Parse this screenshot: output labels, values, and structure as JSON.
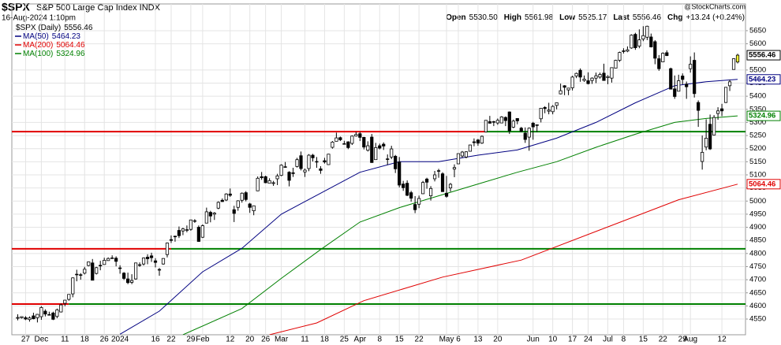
{
  "chart_data": {
    "type": "candlestick",
    "symbol": "$SPX",
    "title": "S&P 500 Large Cap Index INDX",
    "date": "16-Aug-2024 1:10pm",
    "source": "@StockCharts.com",
    "quote": [
      {
        "label": "Open",
        "value": "5530.50"
      },
      {
        "label": "High",
        "value": "5561.98"
      },
      {
        "label": "Low",
        "value": "5525.17"
      },
      {
        "label": "Last",
        "value": "5556.46"
      },
      {
        "label": "Chg",
        "value": "+13.24 (+0.24%)"
      }
    ],
    "price_name": "$SPX (Daily)",
    "ylim": [
      4490,
      5752
    ],
    "xlim": [
      -1.5,
      185
    ],
    "yticks": [
      4550,
      4600,
      4650,
      4700,
      4750,
      4800,
      4850,
      4900,
      4950,
      5000,
      5050,
      5100,
      5150,
      5200,
      5250,
      5300,
      5350,
      5400,
      5450,
      5500,
      5600,
      5650
    ],
    "grid": true,
    "up_fill": "#ffffff",
    "down_fill": "#000000",
    "last_fill": "#ffff33",
    "xlabels": [
      {
        "index": 2,
        "label": "27"
      },
      {
        "index": 6,
        "label": "Dec"
      },
      {
        "index": 12,
        "label": "11"
      },
      {
        "index": 17,
        "label": "18"
      },
      {
        "index": 22,
        "label": "26"
      },
      {
        "index": 26,
        "label": "2024"
      },
      {
        "index": 35,
        "label": "16"
      },
      {
        "index": 39,
        "label": "22"
      },
      {
        "index": 44,
        "label": "29"
      },
      {
        "index": 47,
        "label": "Feb"
      },
      {
        "index": 54,
        "label": "12"
      },
      {
        "index": 59,
        "label": "20"
      },
      {
        "index": 63,
        "label": "26"
      },
      {
        "index": 67,
        "label": "Mar"
      },
      {
        "index": 73,
        "label": "11"
      },
      {
        "index": 78,
        "label": "18"
      },
      {
        "index": 83,
        "label": "25"
      },
      {
        "index": 87,
        "label": "Apr"
      },
      {
        "index": 92,
        "label": "8"
      },
      {
        "index": 97,
        "label": "15"
      },
      {
        "index": 102,
        "label": "22"
      },
      {
        "index": 109,
        "label": "May"
      },
      {
        "index": 112,
        "label": "6"
      },
      {
        "index": 117,
        "label": "13"
      },
      {
        "index": 122,
        "label": "20"
      },
      {
        "index": 131,
        "label": "Jun"
      },
      {
        "index": 136,
        "label": "10"
      },
      {
        "index": 141,
        "label": "17"
      },
      {
        "index": 145,
        "label": "24"
      },
      {
        "index": 150,
        "label": "Jul"
      },
      {
        "index": 154,
        "label": "8"
      },
      {
        "index": 159,
        "label": "15"
      },
      {
        "index": 164,
        "label": "22"
      },
      {
        "index": 169,
        "label": "29"
      },
      {
        "index": 171,
        "label": "Aug"
      },
      {
        "index": 179,
        "label": "12"
      }
    ],
    "levels": [
      {
        "value": 5265,
        "segments": [
          {
            "color": "#e00000",
            "from": -2,
            "to": 119
          },
          {
            "color": "#008000",
            "from": 119,
            "to": 186
          }
        ]
      },
      {
        "value": 4818,
        "segments": [
          {
            "color": "#e00000",
            "from": -2,
            "to": 39
          },
          {
            "color": "#008000",
            "from": 39,
            "to": 186
          }
        ]
      },
      {
        "value": 4607,
        "segments": [
          {
            "color": "#e00000",
            "from": -2,
            "to": 13
          },
          {
            "color": "#008000",
            "from": 13,
            "to": 186
          }
        ]
      }
    ],
    "candles": [
      [
        4553,
        4568,
        4545,
        4556
      ],
      [
        4555,
        4560,
        4552,
        4559
      ],
      [
        4555,
        4561,
        4546,
        4550
      ],
      [
        4548,
        4560,
        4540,
        4554
      ],
      [
        4562,
        4574,
        4549,
        4551
      ],
      [
        4555,
        4569,
        4537,
        4568
      ],
      [
        4559,
        4599,
        4547,
        4594
      ],
      [
        4580,
        4587,
        4560,
        4569
      ],
      [
        4567,
        4578,
        4564,
        4567
      ],
      [
        4573,
        4578,
        4546,
        4549
      ],
      [
        4560,
        4590,
        4553,
        4585
      ],
      [
        4577,
        4609,
        4575,
        4604
      ],
      [
        4610,
        4623,
        4599,
        4622
      ],
      [
        4625,
        4644,
        4620,
        4644
      ],
      [
        4646,
        4709,
        4633,
        4707
      ],
      [
        4721,
        4738,
        4694,
        4720
      ],
      [
        4719,
        4725,
        4700,
        4719
      ],
      [
        4725,
        4749,
        4720,
        4740
      ],
      [
        4754,
        4769,
        4751,
        4768
      ],
      [
        4764,
        4779,
        4698,
        4698
      ],
      [
        4724,
        4749,
        4720,
        4746
      ],
      [
        4754,
        4772,
        4736,
        4755
      ],
      [
        4758,
        4784,
        4758,
        4774
      ],
      [
        4773,
        4785,
        4772,
        4781
      ],
      [
        4783,
        4793,
        4780,
        4783
      ],
      [
        4782,
        4789,
        4751,
        4770
      ],
      [
        4745,
        4755,
        4723,
        4743
      ],
      [
        4725,
        4729,
        4699,
        4705
      ],
      [
        4703,
        4727,
        4683,
        4689
      ],
      [
        4690,
        4721,
        4683,
        4697
      ],
      [
        4703,
        4765,
        4700,
        4764
      ],
      [
        4757,
        4766,
        4749,
        4757
      ],
      [
        4760,
        4785,
        4754,
        4783
      ],
      [
        4786,
        4797,
        4759,
        4780
      ],
      [
        4791,
        4803,
        4768,
        4784
      ],
      [
        4772,
        4782,
        4747,
        4766
      ],
      [
        4739,
        4745,
        4715,
        4739
      ],
      [
        4760,
        4782,
        4757,
        4781
      ],
      [
        4796,
        4842,
        4785,
        4840
      ],
      [
        4853,
        4869,
        4840,
        4850
      ],
      [
        4866,
        4868,
        4845,
        4865
      ],
      [
        4888,
        4903,
        4859,
        4868
      ],
      [
        4886,
        4898,
        4870,
        4894
      ],
      [
        4888,
        4907,
        4881,
        4891
      ],
      [
        4892,
        4929,
        4887,
        4928
      ],
      [
        4925,
        4931,
        4917,
        4925
      ],
      [
        4900,
        4907,
        4845,
        4846
      ],
      [
        4862,
        4911,
        4859,
        4906
      ],
      [
        4916,
        4975,
        4915,
        4959
      ],
      [
        4957,
        4963,
        4919,
        4943
      ],
      [
        4950,
        4958,
        4928,
        4954
      ],
      [
        4973,
        4999,
        4969,
        4995
      ],
      [
        5003,
        5010,
        4997,
        4998
      ],
      [
        5004,
        5030,
        5000,
        5027
      ],
      [
        5027,
        5048,
        5016,
        5022
      ],
      [
        4967,
        4982,
        4920,
        4953
      ],
      [
        4976,
        5003,
        4963,
        5001
      ],
      [
        5003,
        5033,
        4994,
        5030
      ],
      [
        5032,
        5038,
        4999,
        5006
      ],
      [
        4989,
        4993,
        4955,
        4976
      ],
      [
        4963,
        4983,
        4946,
        4982
      ],
      [
        5039,
        5094,
        5038,
        5087
      ],
      [
        5093,
        5111,
        5081,
        5089
      ],
      [
        5093,
        5097,
        5068,
        5070
      ],
      [
        5068,
        5087,
        5068,
        5078
      ],
      [
        5067,
        5077,
        5058,
        5070
      ],
      [
        5085,
        5104,
        5061,
        5096
      ],
      [
        5098,
        5140,
        5095,
        5137
      ],
      [
        5130,
        5149,
        5127,
        5131
      ],
      [
        5110,
        5114,
        5056,
        5079
      ],
      [
        5108,
        5127,
        5092,
        5105
      ],
      [
        5132,
        5165,
        5128,
        5158
      ],
      [
        5173,
        5189,
        5117,
        5124
      ],
      [
        5111,
        5124,
        5092,
        5118
      ],
      [
        5124,
        5179,
        5114,
        5175
      ],
      [
        5175,
        5180,
        5151,
        5165
      ],
      [
        5150,
        5168,
        5127,
        5151
      ],
      [
        5123,
        5133,
        5104,
        5117
      ],
      [
        5154,
        5165,
        5143,
        5149
      ],
      [
        5139,
        5180,
        5138,
        5179
      ],
      [
        5205,
        5229,
        5200,
        5225
      ],
      [
        5228,
        5261,
        5228,
        5241
      ],
      [
        5242,
        5246,
        5229,
        5234
      ],
      [
        5219,
        5230,
        5216,
        5218
      ],
      [
        5226,
        5228,
        5198,
        5204
      ],
      [
        5220,
        5250,
        5214,
        5248
      ],
      [
        5248,
        5264,
        5246,
        5254
      ],
      [
        5257,
        5264,
        5229,
        5243
      ],
      [
        5243,
        5245,
        5197,
        5206
      ],
      [
        5194,
        5228,
        5189,
        5211
      ],
      [
        5244,
        5256,
        5146,
        5147
      ],
      [
        5158,
        5222,
        5157,
        5204
      ],
      [
        5211,
        5219,
        5197,
        5202
      ],
      [
        5217,
        5224,
        5195,
        5210
      ],
      [
        5160,
        5178,
        5138,
        5161
      ],
      [
        5168,
        5211,
        5160,
        5199
      ],
      [
        5171,
        5176,
        5107,
        5123
      ],
      [
        5149,
        5168,
        5052,
        5061
      ],
      [
        5065,
        5077,
        5039,
        5051
      ],
      [
        5068,
        5079,
        5019,
        5022
      ],
      [
        5032,
        5039,
        4998,
        5011
      ],
      [
        4987,
        5019,
        4954,
        4967
      ],
      [
        4988,
        5021,
        4973,
        5010
      ],
      [
        5028,
        5077,
        5027,
        5071
      ],
      [
        5084,
        5089,
        5047,
        5072
      ],
      [
        5020,
        5057,
        5002,
        5048
      ],
      [
        5085,
        5115,
        5075,
        5100
      ],
      [
        5115,
        5123,
        5089,
        5116
      ],
      [
        5104,
        5110,
        5035,
        5036
      ],
      [
        5030,
        5096,
        5013,
        5018
      ],
      [
        5050,
        5069,
        5036,
        5064
      ],
      [
        5122,
        5140,
        5091,
        5128
      ],
      [
        5142,
        5181,
        5142,
        5181
      ],
      [
        5172,
        5191,
        5165,
        5187
      ],
      [
        5168,
        5190,
        5163,
        5188
      ],
      [
        5190,
        5215,
        5189,
        5214
      ],
      [
        5226,
        5239,
        5209,
        5223
      ],
      [
        5233,
        5237,
        5211,
        5221
      ],
      [
        5221,
        5250,
        5218,
        5247
      ],
      [
        5264,
        5309,
        5263,
        5308
      ],
      [
        5303,
        5325,
        5296,
        5297
      ],
      [
        5303,
        5306,
        5286,
        5303
      ],
      [
        5298,
        5315,
        5291,
        5308
      ],
      [
        5298,
        5324,
        5297,
        5321
      ],
      [
        5319,
        5323,
        5286,
        5307
      ],
      [
        5340,
        5342,
        5256,
        5268
      ],
      [
        5282,
        5311,
        5278,
        5305
      ],
      [
        5315,
        5315,
        5293,
        5306
      ],
      [
        5278,
        5283,
        5263,
        5266
      ],
      [
        5259,
        5281,
        5222,
        5235
      ],
      [
        5244,
        5281,
        5192,
        5278
      ],
      [
        5297,
        5302,
        5234,
        5283
      ],
      [
        5291,
        5292,
        5263,
        5291
      ],
      [
        5314,
        5355,
        5300,
        5354
      ],
      [
        5357,
        5362,
        5335,
        5353
      ],
      [
        5343,
        5375,
        5331,
        5347
      ],
      [
        5341,
        5366,
        5331,
        5361
      ],
      [
        5365,
        5375,
        5350,
        5375
      ],
      [
        5409,
        5448,
        5407,
        5421
      ],
      [
        5440,
        5442,
        5404,
        5434
      ],
      [
        5424,
        5432,
        5404,
        5431
      ],
      [
        5432,
        5478,
        5422,
        5473
      ],
      [
        5477,
        5490,
        5469,
        5487
      ],
      [
        5499,
        5506,
        5455,
        5473
      ],
      [
        5460,
        5479,
        5455,
        5465
      ],
      [
        5459,
        5491,
        5445,
        5448
      ],
      [
        5460,
        5472,
        5447,
        5469
      ],
      [
        5469,
        5490,
        5450,
        5478
      ],
      [
        5473,
        5490,
        5467,
        5483
      ],
      [
        5488,
        5524,
        5460,
        5460
      ],
      [
        5471,
        5480,
        5446,
        5475
      ],
      [
        5469,
        5509,
        5452,
        5509
      ],
      [
        5507,
        5539,
        5506,
        5537
      ],
      [
        5537,
        5570,
        5531,
        5567
      ],
      [
        5573,
        5583,
        5563,
        5572
      ],
      [
        5572,
        5590,
        5568,
        5577
      ],
      [
        5584,
        5636,
        5581,
        5633
      ],
      [
        5636,
        5642,
        5577,
        5585
      ],
      [
        5591,
        5655,
        5583,
        5615
      ],
      [
        5618,
        5667,
        5610,
        5631
      ],
      [
        5625,
        5669,
        5614,
        5667
      ],
      [
        5626,
        5639,
        5586,
        5588
      ],
      [
        5608,
        5614,
        5522,
        5545
      ],
      [
        5543,
        5557,
        5497,
        5505
      ],
      [
        5531,
        5567,
        5531,
        5564
      ],
      [
        5566,
        5575,
        5553,
        5555
      ],
      [
        5505,
        5509,
        5427,
        5427
      ],
      [
        5428,
        5479,
        5390,
        5399
      ],
      [
        5419,
        5482,
        5419,
        5459
      ],
      [
        5477,
        5487,
        5445,
        5464
      ],
      [
        5446,
        5456,
        5390,
        5436
      ],
      [
        5505,
        5552,
        5490,
        5522
      ],
      [
        5537,
        5567,
        5395,
        5410
      ],
      [
        5376,
        5384,
        5283,
        5346
      ],
      [
        5151,
        5250,
        5120,
        5186
      ],
      [
        5206,
        5312,
        5194,
        5240
      ],
      [
        5293,
        5330,
        5195,
        5199
      ],
      [
        5252,
        5328,
        5251,
        5319
      ],
      [
        5334,
        5358,
        5310,
        5344
      ],
      [
        5352,
        5371,
        5324,
        5344
      ],
      [
        5376,
        5435,
        5374,
        5434
      ],
      [
        5440,
        5463,
        5420,
        5455
      ],
      [
        5502,
        5544,
        5502,
        5543
      ],
      [
        5530.5,
        5561.98,
        5525.17,
        5556.46
      ]
    ],
    "series": [
      {
        "name": "MA(50)",
        "color": "#000080",
        "x": [
          26,
          36,
          47,
          57,
          67,
          77,
          87,
          97,
          107,
          117,
          127,
          137,
          147,
          157,
          167,
          175,
          183
        ],
        "values": [
          4492,
          4580,
          4730,
          4820,
          4950,
          5030,
          5110,
          5150,
          5150,
          5175,
          5195,
          5240,
          5300,
          5375,
          5440,
          5455,
          5464.23
        ]
      },
      {
        "name": "MA(200)",
        "color": "#e00000",
        "x": [
          64,
          76,
          88,
          108,
          128,
          148,
          168,
          183
        ],
        "values": [
          4490,
          4535,
          4620,
          4710,
          4775,
          4890,
          5005,
          5064.46
        ]
      },
      {
        "name": "MA(100)",
        "color": "#008000",
        "x": [
          42,
          57,
          67,
          77,
          87,
          97,
          107,
          117,
          127,
          137,
          147,
          157,
          167,
          175,
          183
        ],
        "values": [
          4490,
          4590,
          4705,
          4815,
          4920,
          4975,
          5020,
          5065,
          5110,
          5150,
          5205,
          5255,
          5300,
          5315,
          5324.96
        ]
      }
    ]
  }
}
